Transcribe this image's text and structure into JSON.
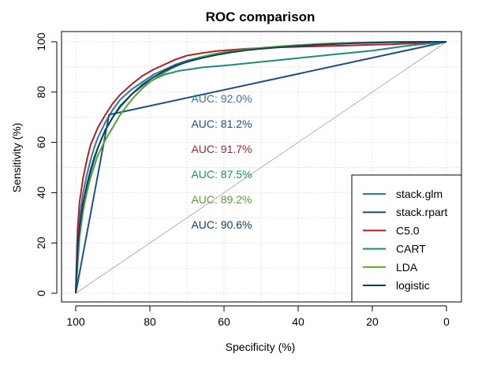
{
  "chart_data": {
    "type": "line",
    "title": "ROC comparison",
    "xlabel": "Specificity (%)",
    "ylabel": "Sensitivity (%)",
    "xlim": [
      100,
      0
    ],
    "ylim": [
      0,
      100
    ],
    "xticks": [
      "100",
      "80",
      "60",
      "40",
      "20",
      "0"
    ],
    "yticks": [
      "0",
      "20",
      "40",
      "60",
      "80",
      "100"
    ],
    "grid": true,
    "legend_position": "bottom-right",
    "diagonal": {
      "color": "#a0a0a0"
    },
    "series": [
      {
        "name": "stack.glm",
        "color": "#2d7a9b",
        "auc_label": "AUC: 92.0%",
        "x": [
          100,
          99.5,
          99,
          98,
          97,
          96,
          95,
          94,
          92,
          90,
          88,
          85,
          82,
          79,
          76,
          73,
          70,
          66,
          62,
          58,
          54,
          50,
          45,
          40,
          35,
          30,
          25,
          20,
          15,
          10,
          5,
          0
        ],
        "y": [
          0,
          20,
          30,
          40,
          47,
          53,
          58,
          62,
          68,
          73,
          77,
          81,
          84,
          87,
          89,
          91,
          92.5,
          94,
          95.3,
          96.3,
          97,
          97.5,
          98,
          98.5,
          99,
          99.3,
          99.6,
          99.8,
          99.9,
          100,
          100,
          100
        ]
      },
      {
        "name": "stack.rpart",
        "color": "#1a4f8a",
        "auc_label": "AUC: 81.2%",
        "x": [
          100,
          91,
          0
        ],
        "y": [
          0,
          71,
          100
        ]
      },
      {
        "name": "C5.0",
        "color": "#b22222",
        "auc_label": "AUC: 91.7%",
        "x": [
          100,
          99.5,
          99,
          98,
          97,
          96,
          94,
          92,
          90,
          88,
          85,
          82,
          79,
          76,
          73,
          70,
          66,
          62,
          58,
          54,
          50,
          45,
          40,
          35,
          30,
          25,
          20,
          15,
          10,
          5,
          0
        ],
        "y": [
          0,
          25,
          36,
          46,
          53,
          59,
          66,
          71,
          75.5,
          79,
          83,
          86.5,
          89,
          91,
          93,
          94.5,
          95.5,
          96.3,
          96.8,
          97.2,
          97.5,
          97.8,
          98,
          98.2,
          98.4,
          98.6,
          98.8,
          99,
          99.3,
          99.6,
          100
        ]
      },
      {
        "name": "CART",
        "color": "#1f8a7a",
        "auc_label": "AUC: 87.5%",
        "x": [
          100,
          99,
          98,
          97,
          96,
          94,
          92,
          90,
          88,
          85,
          82,
          79,
          76,
          72,
          68,
          66,
          60,
          50,
          40,
          30,
          20,
          10,
          0
        ],
        "y": [
          0,
          22,
          33,
          41,
          48,
          58,
          65,
          70,
          74,
          79,
          82.5,
          85,
          87,
          88.5,
          89.3,
          89.8,
          90.5,
          92,
          93.5,
          95,
          96.5,
          98.5,
          100
        ]
      },
      {
        "name": "LDA",
        "color": "#5aa02c",
        "auc_label": "AUC: 89.2%",
        "x": [
          100,
          99.5,
          99,
          98,
          97,
          96,
          94,
          92,
          90,
          88,
          86,
          84,
          82,
          80,
          77,
          74,
          71,
          68,
          65,
          62,
          58,
          54,
          50,
          45,
          40,
          35,
          30,
          25,
          20,
          15,
          10,
          5,
          0
        ],
        "y": [
          0,
          15,
          24,
          33,
          40,
          46,
          55,
          61,
          66,
          71,
          75,
          78.5,
          81.5,
          84,
          87,
          89.5,
          91.5,
          93,
          94.3,
          95.3,
          96.2,
          97,
          97.6,
          98.2,
          98.7,
          99.1,
          99.4,
          99.6,
          99.8,
          99.9,
          100,
          100,
          100
        ]
      },
      {
        "name": "logistic",
        "color": "#0f3d66",
        "auc_label": "AUC: 90.6%",
        "x": [
          100,
          99.5,
          99,
          98,
          97,
          96,
          95,
          94,
          92,
          90,
          88,
          85,
          82,
          79,
          76,
          73,
          70,
          66,
          62,
          58,
          54,
          50,
          45,
          40,
          35,
          30,
          25,
          20,
          15,
          10,
          5,
          0
        ],
        "y": [
          0,
          18,
          26,
          36,
          43,
          49,
          54,
          58,
          65,
          70,
          74.5,
          79,
          83,
          86,
          88.5,
          90.5,
          92,
          93.5,
          94.8,
          95.8,
          96.6,
          97.2,
          97.8,
          98.3,
          98.8,
          99.1,
          99.4,
          99.6,
          99.8,
          99.9,
          100,
          100
        ]
      }
    ]
  }
}
